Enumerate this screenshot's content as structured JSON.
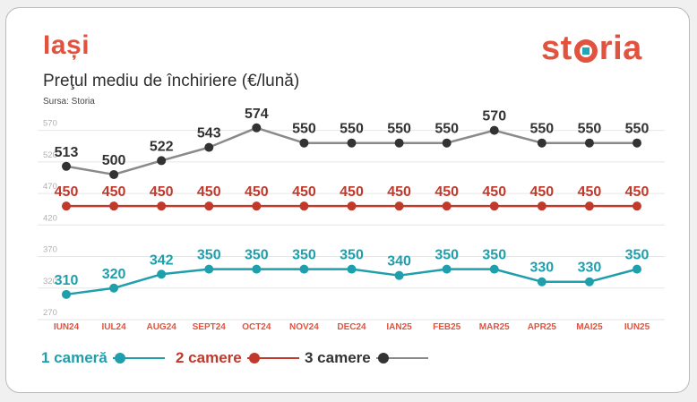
{
  "header": {
    "city": "Iași",
    "subtitle": "Preţul mediu de închiriere (€/lună)",
    "source": "Sursa: Storia",
    "brand_left": "st",
    "brand_right": "ria"
  },
  "colors": {
    "accent": "#e2533f",
    "teal": "#1f9fac",
    "red": "#c0392b",
    "dark": "#333333",
    "grid": "#e6e6e6",
    "tick": "#b0b0b0"
  },
  "chart_data": {
    "type": "line",
    "categories": [
      "IUN24",
      "IUL24",
      "AUG24",
      "SEPT24",
      "OCT24",
      "NOV24",
      "DEC24",
      "IAN25",
      "FEB25",
      "MAR25",
      "APR25",
      "MAI25",
      "IUN25"
    ],
    "y_ticks": [
      270,
      320,
      370,
      420,
      470,
      520,
      570
    ],
    "ylim": [
      270,
      595
    ],
    "grid": true,
    "legend_position": "bottom-left",
    "series": [
      {
        "name": "1 cameră",
        "values": [
          310,
          320,
          342,
          350,
          350,
          350,
          350,
          340,
          350,
          350,
          330,
          330,
          350
        ],
        "color": "#1f9fac",
        "line": "#1f9fac",
        "dot": "#1f9fac"
      },
      {
        "name": "2 camere",
        "values": [
          450,
          450,
          450,
          450,
          450,
          450,
          450,
          450,
          450,
          450,
          450,
          450,
          450
        ],
        "color": "#c0392b",
        "line": "#c0392b",
        "dot": "#c0392b"
      },
      {
        "name": "3 camere",
        "values": [
          513,
          500,
          522,
          543,
          574,
          550,
          550,
          550,
          550,
          570,
          550,
          550,
          550
        ],
        "color": "#333333",
        "line": "#8a8a8a",
        "dot": "#333333"
      }
    ]
  }
}
